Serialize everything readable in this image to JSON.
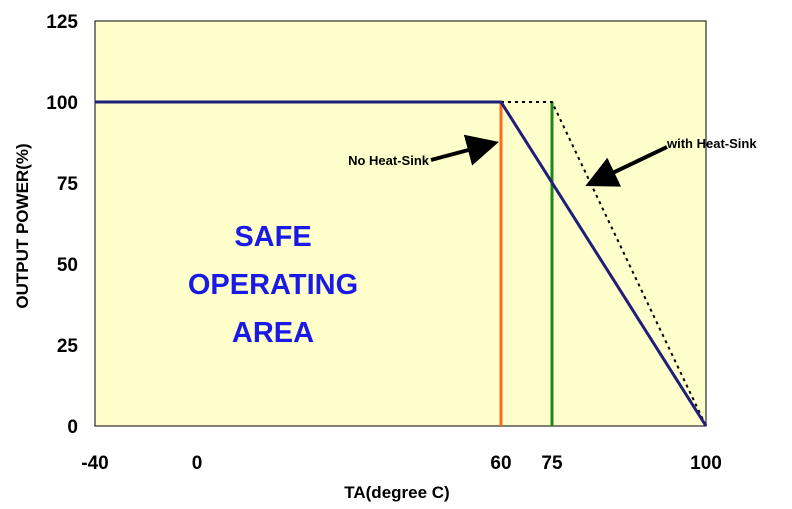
{
  "chart_data": {
    "type": "line",
    "xlabel": "TA(degree C)",
    "ylabel": "OUTPUT POWER(%)",
    "xlim": [
      -40,
      100
    ],
    "ylim": [
      0,
      125
    ],
    "x_ticks": [
      "-40",
      "0",
      "60",
      "75",
      "100"
    ],
    "x_tick_values": [
      -40,
      0,
      60,
      75,
      100
    ],
    "y_ticks": [
      "125",
      "100",
      "75",
      "50",
      "25",
      "0"
    ],
    "y_tick_values": [
      125,
      100,
      75,
      50,
      25,
      0
    ],
    "grid": false,
    "plot_background": "#ffffcc",
    "series": [
      {
        "style": "solid",
        "color": "#1f1f7a",
        "x": [
          -40,
          60,
          100
        ],
        "y": [
          100,
          100,
          0
        ]
      },
      {
        "style": "dotted",
        "color": "#000000",
        "x": [
          60,
          65,
          70,
          75,
          100
        ],
        "y": [
          100,
          100,
          100,
          100,
          0
        ]
      }
    ],
    "vertical_lines": [
      {
        "x": 60,
        "color": "#ff6a1a",
        "y_to": 100
      },
      {
        "x": 75,
        "color": "#1a8a1a",
        "y_to": 100
      }
    ],
    "annotations": [
      {
        "text": "No Heat-Sink",
        "points_to": [
          60,
          88
        ]
      },
      {
        "text": "with Heat-Sink",
        "points_to": [
          81,
          74
        ]
      }
    ],
    "area_label": [
      "SAFE",
      "OPERATING",
      "AREA"
    ]
  }
}
